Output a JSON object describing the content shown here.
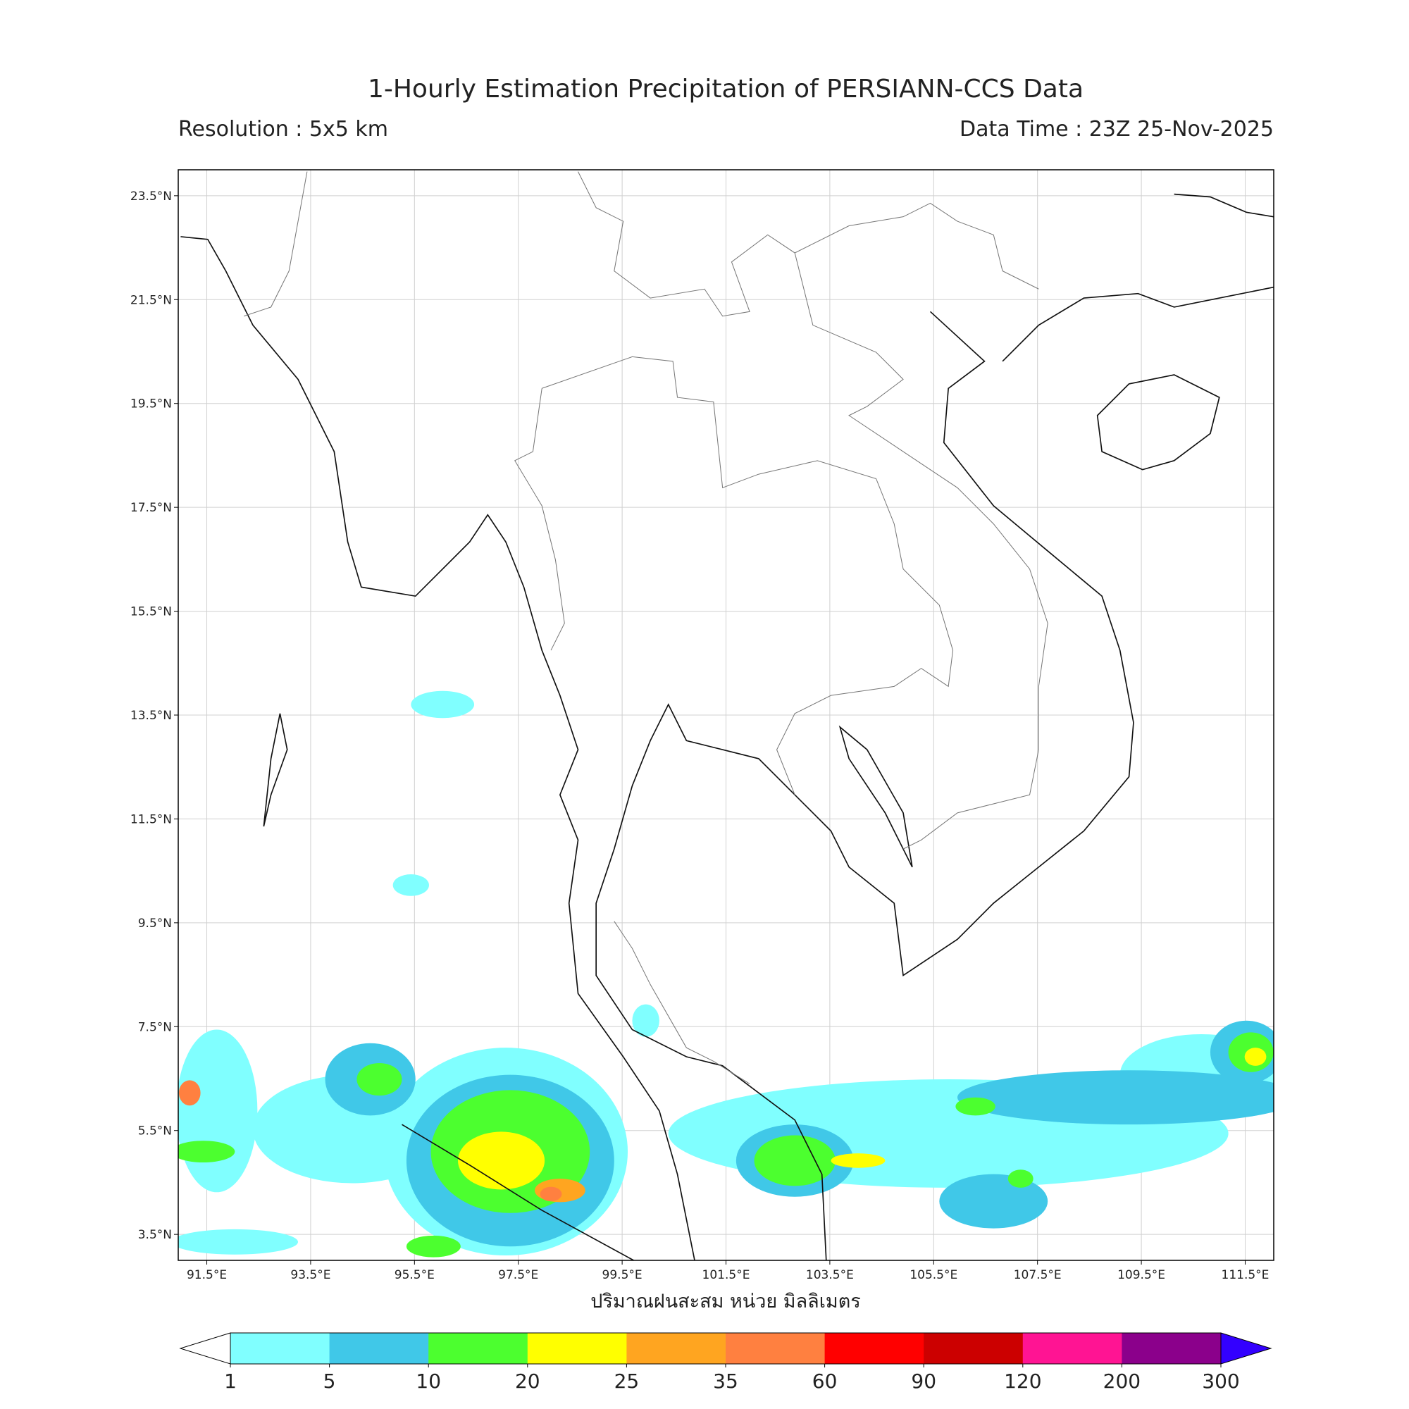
{
  "chart_data": {
    "type": "map",
    "title": "1-Hourly Estimation Precipitation of PERSIANN-CCS Data",
    "subtitle_left": "Resolution : 5x5 km",
    "subtitle_right": "Data Time : 23Z 25-Nov-2025",
    "xlabel": "ปริมาณฝนสะสม หน่วย มิลลิเมตร",
    "xlim": [
      90.95,
      112.05
    ],
    "ylim": [
      3.0,
      24.0
    ],
    "xticks": [
      {
        "value": 91.5,
        "label": "91.5°E"
      },
      {
        "value": 93.5,
        "label": "93.5°E"
      },
      {
        "value": 95.5,
        "label": "95.5°E"
      },
      {
        "value": 97.5,
        "label": "97.5°E"
      },
      {
        "value": 99.5,
        "label": "99.5°E"
      },
      {
        "value": 101.5,
        "label": "101.5°E"
      },
      {
        "value": 103.5,
        "label": "103.5°E"
      },
      {
        "value": 105.5,
        "label": "105.5°E"
      },
      {
        "value": 107.5,
        "label": "107.5°E"
      },
      {
        "value": 109.5,
        "label": "109.5°E"
      },
      {
        "value": 111.5,
        "label": "111.5°E"
      }
    ],
    "yticks": [
      {
        "value": 3.5,
        "label": "3.5°N"
      },
      {
        "value": 5.5,
        "label": "5.5°N"
      },
      {
        "value": 7.5,
        "label": "7.5°N"
      },
      {
        "value": 9.5,
        "label": "9.5°N"
      },
      {
        "value": 11.5,
        "label": "11.5°N"
      },
      {
        "value": 13.5,
        "label": "13.5°N"
      },
      {
        "value": 15.5,
        "label": "15.5°N"
      },
      {
        "value": 17.5,
        "label": "17.5°N"
      },
      {
        "value": 19.5,
        "label": "19.5°N"
      },
      {
        "value": 21.5,
        "label": "21.5°N"
      },
      {
        "value": 23.5,
        "label": "23.5°N"
      }
    ],
    "grid": true,
    "colorbar": {
      "levels": [
        1,
        5,
        10,
        20,
        25,
        35,
        60,
        90,
        120,
        200,
        300
      ],
      "colors": [
        "#80ffff",
        "#40c8e8",
        "#4cff2f",
        "#ffff00",
        "#ffa520",
        "#ff8040",
        "#ff0000",
        "#cc0000",
        "#ff1493",
        "#8b008b"
      ],
      "under_color": "#ffffff",
      "over_color": "#3300ff"
    }
  }
}
